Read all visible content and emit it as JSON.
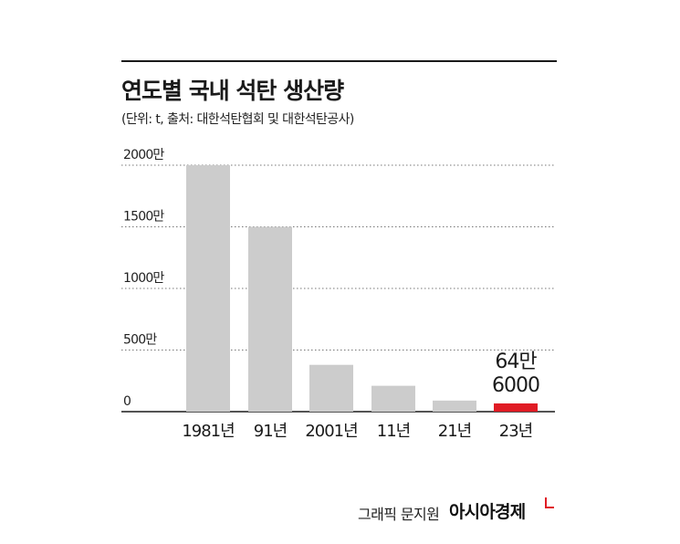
{
  "title": "연도별 국내 석탄 생산량",
  "subtitle": "(단위: t, 출처: 대한석탄협회 및 대한석탄공사)",
  "credit": "그래픽 문지원",
  "brand": "아시아경제",
  "colors": {
    "bar": "#cccccc",
    "highlight": "#e01b24",
    "text": "#1a1a1a"
  },
  "chart_data": {
    "type": "bar",
    "title": "연도별 국내 석탄 생산량",
    "subtitle": "(단위: t, 출처: 대한석탄협회 및 대한석탄공사)",
    "categories": [
      "1981년",
      "91년",
      "2001년",
      "11년",
      "21년",
      "23년"
    ],
    "values": [
      20000000,
      15000000,
      3800000,
      2100000,
      900000,
      646000
    ],
    "highlight_index": 5,
    "value_label": {
      "index": 5,
      "lines": [
        "64만",
        "6000"
      ]
    },
    "yticks": [
      {
        "value": 0,
        "label": "0"
      },
      {
        "value": 5000000,
        "label": "500만"
      },
      {
        "value": 10000000,
        "label": "1000만"
      },
      {
        "value": 15000000,
        "label": "1500만"
      },
      {
        "value": 20000000,
        "label": "2000만"
      }
    ],
    "ylim": [
      0,
      20000000
    ],
    "grid": true,
    "xlabel": "",
    "ylabel": ""
  }
}
